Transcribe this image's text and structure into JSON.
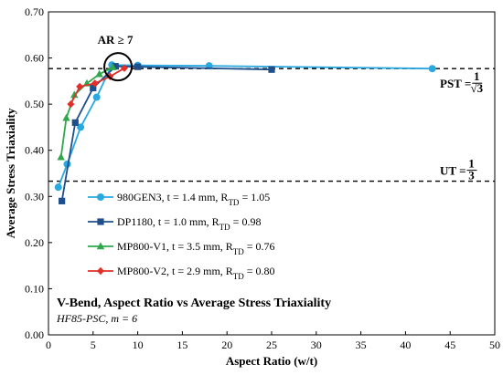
{
  "chart_data": {
    "type": "line",
    "title": "V-Bend, Aspect Ratio vs Average Stress Triaxiality",
    "subtitle": "HF85-PSC, m = 6",
    "xlabel": "Aspect Ratio (w/t)",
    "ylabel": "Average Stress Triaxiality",
    "xlim": [
      0,
      50
    ],
    "ylim": [
      0,
      0.7
    ],
    "xticks": [
      "0",
      "5",
      "10",
      "15",
      "20",
      "25",
      "30",
      "35",
      "40",
      "45",
      "50"
    ],
    "yticks": [
      "0.00",
      "0.10",
      "0.20",
      "0.30",
      "0.40",
      "0.50",
      "0.60",
      "0.70"
    ],
    "grid": false,
    "legend_position": "lower-left",
    "series": [
      {
        "name_main": "980GEN3, t = 1.4 mm, R",
        "name_sub": "TD",
        "name_tail": " = 1.05",
        "color": "#2aa8e0",
        "marker": "circle",
        "points": [
          [
            1.1,
            0.32
          ],
          [
            2.1,
            0.37
          ],
          [
            3.6,
            0.45
          ],
          [
            5.4,
            0.515
          ],
          [
            7.1,
            0.585
          ],
          [
            10.0,
            0.584
          ],
          [
            18.0,
            0.583
          ],
          [
            43.0,
            0.577
          ]
        ]
      },
      {
        "name_main": "DP1180, t = 1.0 mm, R",
        "name_sub": "TD",
        "name_tail": " = 0.98",
        "color": "#1f4e8c",
        "marker": "square",
        "points": [
          [
            1.5,
            0.29
          ],
          [
            3.0,
            0.46
          ],
          [
            5.0,
            0.535
          ],
          [
            7.5,
            0.582
          ],
          [
            10.0,
            0.581
          ],
          [
            25.0,
            0.575
          ]
        ]
      },
      {
        "name_main": "MP800-V1, t = 3.5 mm, R",
        "name_sub": "TD",
        "name_tail": " = 0.76",
        "color": "#2ea84a",
        "marker": "triangle",
        "points": [
          [
            1.4,
            0.385
          ],
          [
            2.0,
            0.47
          ],
          [
            2.9,
            0.52
          ],
          [
            4.3,
            0.545
          ],
          [
            5.7,
            0.565
          ],
          [
            7.2,
            0.58
          ]
        ]
      },
      {
        "name_main": "MP800-V2, t = 2.9 mm, R",
        "name_sub": "TD",
        "name_tail": " = 0.80",
        "color": "#e0302a",
        "marker": "diamond",
        "points": [
          [
            2.5,
            0.5
          ],
          [
            3.5,
            0.538
          ],
          [
            5.2,
            0.545
          ],
          [
            6.9,
            0.56
          ],
          [
            8.5,
            0.578
          ]
        ]
      }
    ],
    "reference_lines": [
      {
        "y": 0.577,
        "label_text": "PST = ",
        "label_fraction": "1/√3",
        "frac_num": "1",
        "frac_den": "√3",
        "style": "dashed"
      },
      {
        "y": 0.333,
        "label_text": "UT = ",
        "label_fraction": "1/3",
        "frac_num": "1",
        "frac_den": "3",
        "style": "dashed"
      }
    ],
    "annotation": {
      "text": "AR ≥ 7",
      "x": 8.0,
      "y": 0.585
    }
  }
}
